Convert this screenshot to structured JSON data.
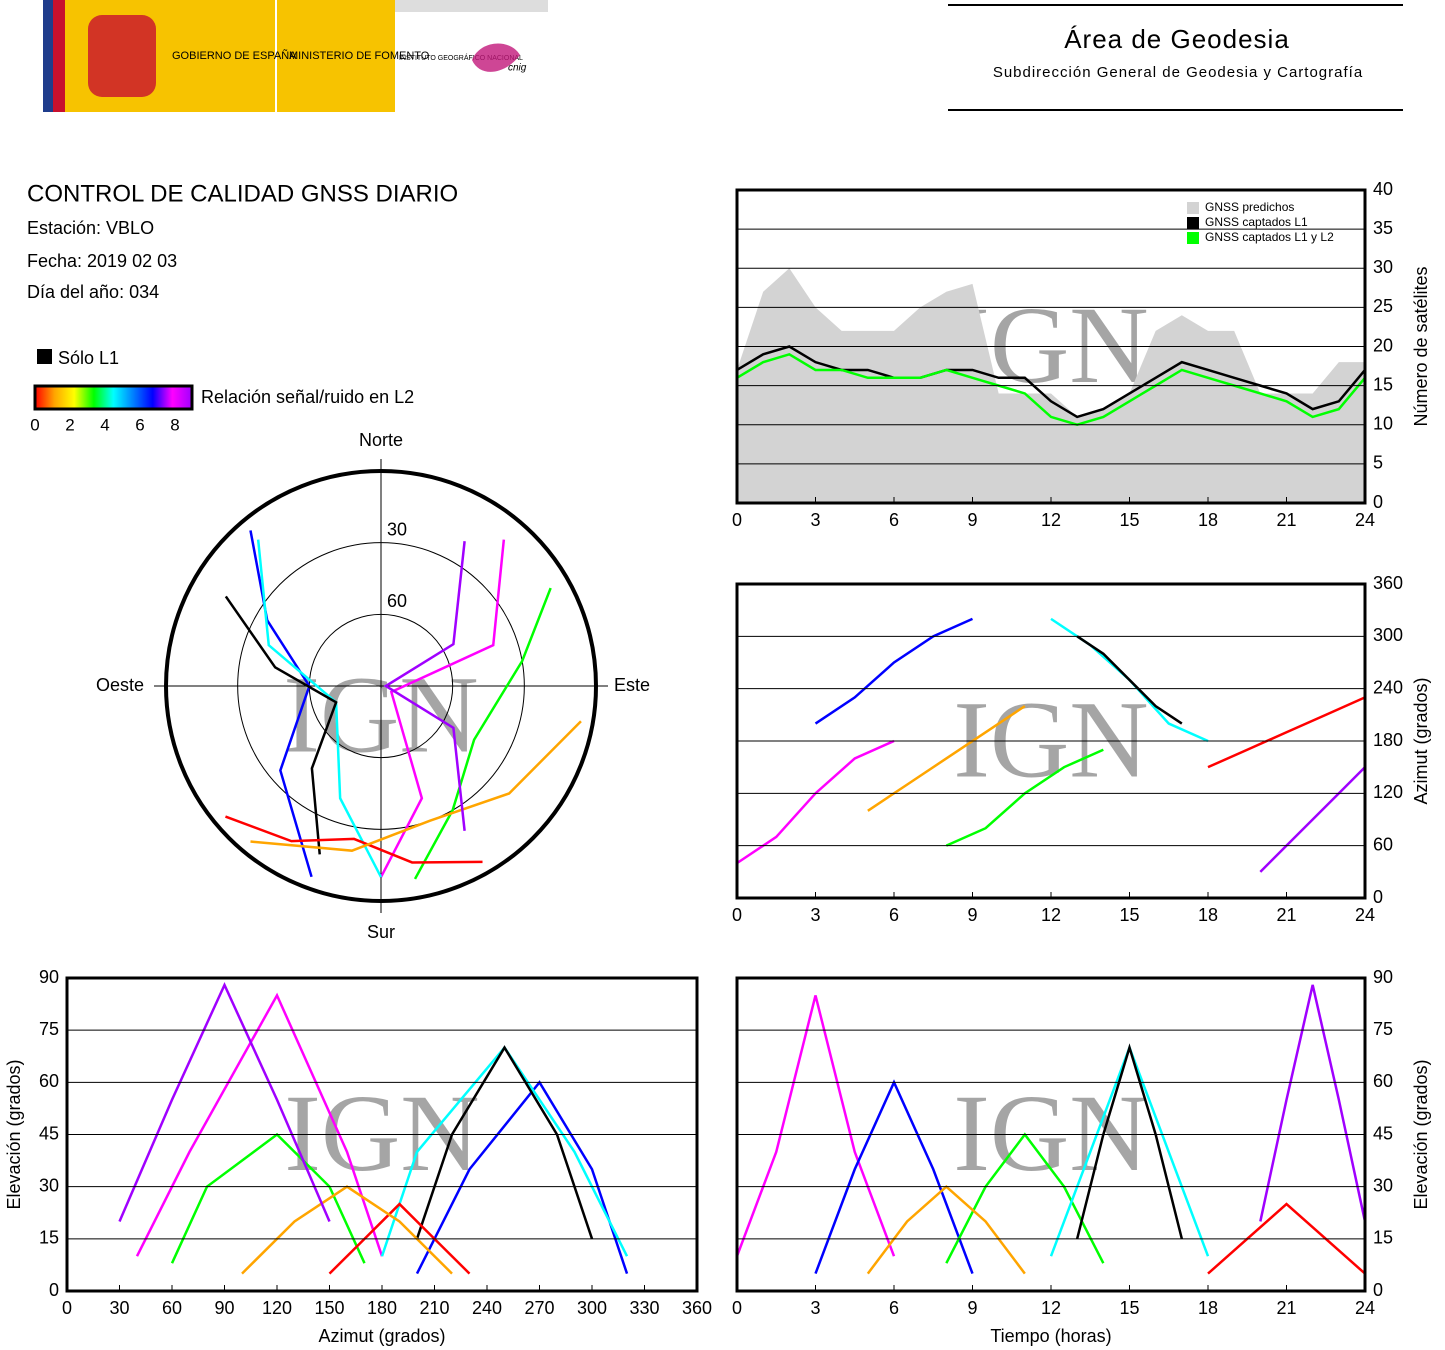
{
  "header": {
    "gobierno": "GOBIERNO DE ESPAÑA",
    "ministerio": "MINISTERIO DE FOMENTO",
    "instituto": "INSTITUTO GEOGRÁFICO NACIONAL",
    "cnig": "cnig",
    "area": "Área de Geodesia",
    "subdireccion": "Subdirección General de Geodesia y Cartografía"
  },
  "info": {
    "title": "CONTROL DE CALIDAD GNSS DIARIO",
    "station": "Estación: VBLO",
    "date": "Fecha: 2019 02 03",
    "doy": "Día del año: 034"
  },
  "legend": {
    "l1_only": "Sólo L1",
    "snr_label": "Relación señal/ruido en L2",
    "snr_ticks": [
      0,
      2,
      4,
      6,
      8
    ],
    "snr_colors": [
      "#ff0000",
      "#ffa500",
      "#ffff00",
      "#00ff00",
      "#00ffff",
      "#0080ff",
      "#0000ff",
      "#ff00ff",
      "#a000ff"
    ]
  },
  "watermark": "IGN",
  "chart_data": [
    {
      "type": "line",
      "y_label": "Número de satélites",
      "x": [
        0,
        1,
        2,
        3,
        4,
        5,
        6,
        7,
        8,
        9,
        10,
        11,
        12,
        13,
        14,
        15,
        16,
        17,
        18,
        19,
        20,
        21,
        22,
        23,
        24
      ],
      "xlim": [
        0,
        24
      ],
      "xticks": [
        0,
        3,
        6,
        9,
        12,
        15,
        18,
        21,
        24
      ],
      "ylim": [
        0,
        40
      ],
      "yticks": [
        0,
        5,
        10,
        15,
        20,
        25,
        30,
        35,
        40
      ],
      "grid": true,
      "series": [
        {
          "name": "GNSS predichos",
          "color": "#d3d3d3",
          "fill": true,
          "values": [
            17,
            27,
            30,
            25,
            22,
            22,
            22,
            25,
            27,
            28,
            14,
            14,
            14,
            11,
            12,
            14,
            22,
            24,
            22,
            22,
            14,
            14,
            14,
            18,
            18
          ]
        },
        {
          "name": "GNSS captados L1",
          "color": "#000000",
          "values": [
            17,
            19,
            20,
            18,
            17,
            17,
            16,
            16,
            17,
            17,
            16,
            16,
            13,
            11,
            12,
            14,
            16,
            18,
            17,
            16,
            15,
            14,
            12,
            13,
            17
          ]
        },
        {
          "name": "GNSS captados L1 y L2",
          "color": "#00ff00",
          "values": [
            16,
            18,
            19,
            17,
            17,
            16,
            16,
            16,
            17,
            16,
            15,
            14,
            11,
            10,
            11,
            13,
            15,
            17,
            16,
            15,
            14,
            13,
            11,
            12,
            16
          ]
        }
      ]
    },
    {
      "type": "polar",
      "directions": [
        "Norte",
        "Este",
        "Sur",
        "Oeste"
      ],
      "rlim": [
        0,
        90
      ],
      "rticks": [
        30,
        60
      ],
      "series": [
        {
          "color": "#ff00ff",
          "x": [
            40,
            70,
            120,
            160,
            180
          ],
          "values": [
            10,
            40,
            85,
            40,
            10
          ]
        },
        {
          "color": "#0000ff",
          "x": [
            200,
            230,
            270,
            300,
            320
          ],
          "values": [
            5,
            35,
            60,
            35,
            5
          ]
        },
        {
          "color": "#00ff00",
          "x": [
            60,
            80,
            120,
            150,
            170
          ],
          "values": [
            8,
            30,
            45,
            30,
            8
          ]
        },
        {
          "color": "#00ffff",
          "x": [
            320,
            290,
            250,
            200,
            180
          ],
          "values": [
            10,
            40,
            70,
            40,
            10
          ]
        },
        {
          "color": "#000000",
          "x": [
            300,
            280,
            250,
            220,
            200
          ],
          "values": [
            15,
            45,
            70,
            45,
            15
          ]
        },
        {
          "color": "#ff0000",
          "x": [
            150,
            170,
            190,
            210,
            230
          ],
          "values": [
            5,
            15,
            25,
            15,
            5
          ]
        },
        {
          "color": "#ffa500",
          "x": [
            100,
            130,
            160,
            190,
            220
          ],
          "values": [
            5,
            20,
            30,
            20,
            5
          ]
        },
        {
          "color": "#a000ff",
          "x": [
            30,
            60,
            90,
            120,
            150
          ],
          "values": [
            20,
            55,
            88,
            55,
            20
          ]
        }
      ]
    },
    {
      "type": "scatter",
      "y_label": "Azimut (grados)",
      "xlim": [
        0,
        24
      ],
      "xticks": [
        0,
        3,
        6,
        9,
        12,
        15,
        18,
        21,
        24
      ],
      "ylim": [
        0,
        360
      ],
      "yticks": [
        0,
        60,
        120,
        180,
        240,
        300,
        360
      ],
      "grid": true,
      "series": [
        {
          "color": "#ff00ff",
          "x": [
            0,
            1.5,
            3,
            4.5,
            6
          ],
          "values": [
            40,
            70,
            120,
            160,
            180
          ]
        },
        {
          "color": "#0000ff",
          "x": [
            3,
            4.5,
            6,
            7.5,
            9
          ],
          "values": [
            200,
            230,
            270,
            300,
            320
          ]
        },
        {
          "color": "#00ff00",
          "x": [
            8,
            9.5,
            11,
            12.5,
            14
          ],
          "values": [
            60,
            80,
            120,
            150,
            170
          ]
        },
        {
          "color": "#00ffff",
          "x": [
            12,
            13.5,
            15,
            16.5,
            18
          ],
          "values": [
            320,
            290,
            250,
            200,
            180
          ]
        },
        {
          "color": "#000000",
          "x": [
            13,
            14,
            15,
            16,
            17
          ],
          "values": [
            300,
            280,
            250,
            220,
            200
          ]
        },
        {
          "color": "#ff0000",
          "x": [
            18,
            19.5,
            21,
            22.5,
            24
          ],
          "values": [
            150,
            170,
            190,
            210,
            230
          ]
        },
        {
          "color": "#ffa500",
          "x": [
            5,
            6.5,
            8,
            9.5,
            11
          ],
          "values": [
            100,
            130,
            160,
            190,
            220
          ]
        },
        {
          "color": "#a000ff",
          "x": [
            20,
            21,
            22,
            23,
            24
          ],
          "values": [
            30,
            60,
            90,
            120,
            150
          ]
        }
      ]
    },
    {
      "type": "scatter",
      "x_label": "Azimut (grados)",
      "y_label": "Elevación (grados)",
      "xlim": [
        0,
        360
      ],
      "xticks": [
        0,
        30,
        60,
        90,
        120,
        150,
        180,
        210,
        240,
        270,
        300,
        330,
        360
      ],
      "ylim": [
        0,
        90
      ],
      "yticks": [
        0,
        15,
        30,
        45,
        60,
        75,
        90
      ],
      "grid": true,
      "series": [
        {
          "color": "#ff00ff",
          "x": [
            40,
            70,
            120,
            160,
            180
          ],
          "values": [
            10,
            40,
            85,
            40,
            10
          ]
        },
        {
          "color": "#0000ff",
          "x": [
            200,
            230,
            270,
            300,
            320
          ],
          "values": [
            5,
            35,
            60,
            35,
            5
          ]
        },
        {
          "color": "#00ff00",
          "x": [
            60,
            80,
            120,
            150,
            170
          ],
          "values": [
            8,
            30,
            45,
            30,
            8
          ]
        },
        {
          "color": "#00ffff",
          "x": [
            320,
            290,
            250,
            200,
            180
          ],
          "values": [
            10,
            40,
            70,
            40,
            10
          ]
        },
        {
          "color": "#000000",
          "x": [
            300,
            280,
            250,
            220,
            200
          ],
          "values": [
            15,
            45,
            70,
            45,
            15
          ]
        },
        {
          "color": "#ff0000",
          "x": [
            150,
            170,
            190,
            210,
            230
          ],
          "values": [
            5,
            15,
            25,
            15,
            5
          ]
        },
        {
          "color": "#ffa500",
          "x": [
            100,
            130,
            160,
            190,
            220
          ],
          "values": [
            5,
            20,
            30,
            20,
            5
          ]
        },
        {
          "color": "#a000ff",
          "x": [
            30,
            60,
            90,
            120,
            150
          ],
          "values": [
            20,
            55,
            88,
            55,
            20
          ]
        }
      ]
    },
    {
      "type": "scatter",
      "x_label": "Tiempo (horas)",
      "y_label": "Elevación (grados)",
      "xlim": [
        0,
        24
      ],
      "xticks": [
        0,
        3,
        6,
        9,
        12,
        15,
        18,
        21,
        24
      ],
      "ylim": [
        0,
        90
      ],
      "yticks": [
        0,
        15,
        30,
        45,
        60,
        75,
        90
      ],
      "grid": true,
      "series": [
        {
          "color": "#ff00ff",
          "x": [
            0,
            1.5,
            3,
            4.5,
            6
          ],
          "values": [
            10,
            40,
            85,
            40,
            10
          ]
        },
        {
          "color": "#0000ff",
          "x": [
            3,
            4.5,
            6,
            7.5,
            9
          ],
          "values": [
            5,
            35,
            60,
            35,
            5
          ]
        },
        {
          "color": "#00ff00",
          "x": [
            8,
            9.5,
            11,
            12.5,
            14
          ],
          "values": [
            8,
            30,
            45,
            30,
            8
          ]
        },
        {
          "color": "#00ffff",
          "x": [
            12,
            13.5,
            15,
            16.5,
            18
          ],
          "values": [
            10,
            40,
            70,
            40,
            10
          ]
        },
        {
          "color": "#000000",
          "x": [
            13,
            14,
            15,
            16,
            17
          ],
          "values": [
            15,
            45,
            70,
            45,
            15
          ]
        },
        {
          "color": "#ff0000",
          "x": [
            18,
            19.5,
            21,
            22.5,
            24
          ],
          "values": [
            5,
            15,
            25,
            15,
            5
          ]
        },
        {
          "color": "#ffa500",
          "x": [
            5,
            6.5,
            8,
            9.5,
            11
          ],
          "values": [
            5,
            20,
            30,
            20,
            5
          ]
        },
        {
          "color": "#a000ff",
          "x": [
            20,
            21,
            22,
            23,
            24
          ],
          "values": [
            20,
            55,
            88,
            55,
            20
          ]
        }
      ]
    }
  ]
}
